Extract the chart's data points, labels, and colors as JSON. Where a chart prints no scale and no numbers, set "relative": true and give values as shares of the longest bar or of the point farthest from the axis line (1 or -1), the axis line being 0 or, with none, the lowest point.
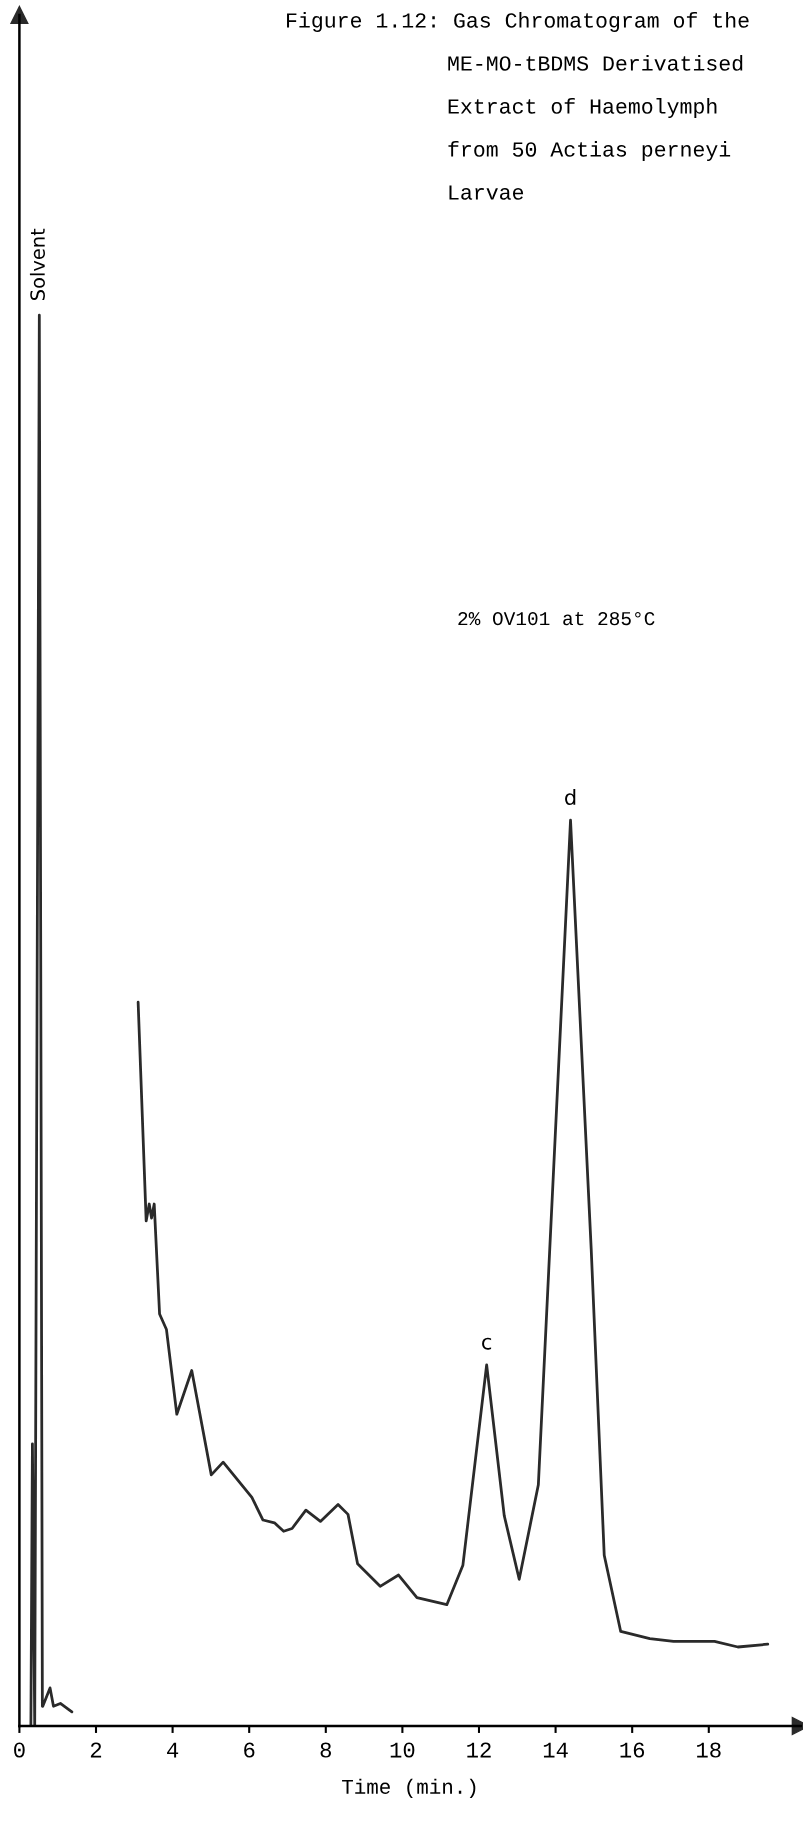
{
  "chart_data": {
    "type": "line",
    "relative": true,
    "title": "Figure 1.12: Gas Chromatogram of the\nME-MO-tBDMS Derivatised\nExtract of Haemolymph\nfrom 50 Actias perneyi\nLarvae",
    "xlabel": "Time (min.)",
    "xlim": [
      0,
      20.4
    ],
    "xticks": [
      0,
      2,
      4,
      6,
      8,
      10,
      12,
      14,
      16,
      18
    ],
    "series": [
      {
        "color": "#2a2a2a",
        "x": [
          0.3,
          0.34,
          0.4,
          0.52,
          0.6,
          0.61,
          0.8,
          0.89,
          1.07,
          1.37,
          2.0,
          3.1,
          3.31,
          3.39,
          3.45,
          3.52,
          3.66,
          3.84,
          4.11,
          4.5,
          5.01,
          5.32,
          6.07,
          6.36,
          6.66,
          6.9,
          7.12,
          7.48,
          7.86,
          8.32,
          8.58,
          8.83,
          9.42,
          9.9,
          10.38,
          11.16,
          11.58,
          12.2,
          12.66,
          13.05,
          13.55,
          14.39,
          14.93,
          15.27,
          15.7,
          16.46,
          17.08,
          18.15,
          18.76,
          19.54
        ],
        "values": [
          0.0,
          0.2,
          0.0,
          1.0,
          0.014,
          0.014,
          0.027,
          0.014,
          0.016,
          0.01,
          null,
          0.513,
          0.358,
          0.37,
          0.36,
          0.37,
          0.292,
          0.281,
          0.221,
          0.252,
          0.178,
          0.187,
          0.162,
          0.146,
          0.144,
          0.138,
          0.14,
          0.153,
          0.145,
          0.157,
          0.15,
          0.115,
          0.099,
          0.107,
          0.091,
          0.086,
          0.114,
          0.256,
          0.149,
          0.104,
          0.171,
          0.642,
          0.338,
          0.121,
          0.067,
          0.062,
          0.06,
          0.06,
          0.056,
          0.058
        ]
      }
    ],
    "annotations": [
      {
        "text": "Solvent",
        "x": 0.52,
        "y": 1.0
      },
      {
        "text": "c",
        "x": 12.2,
        "y": 0.256
      },
      {
        "text": "d",
        "x": 14.39,
        "y": 0.642
      },
      "2% OV101 at 285°C"
    ]
  }
}
